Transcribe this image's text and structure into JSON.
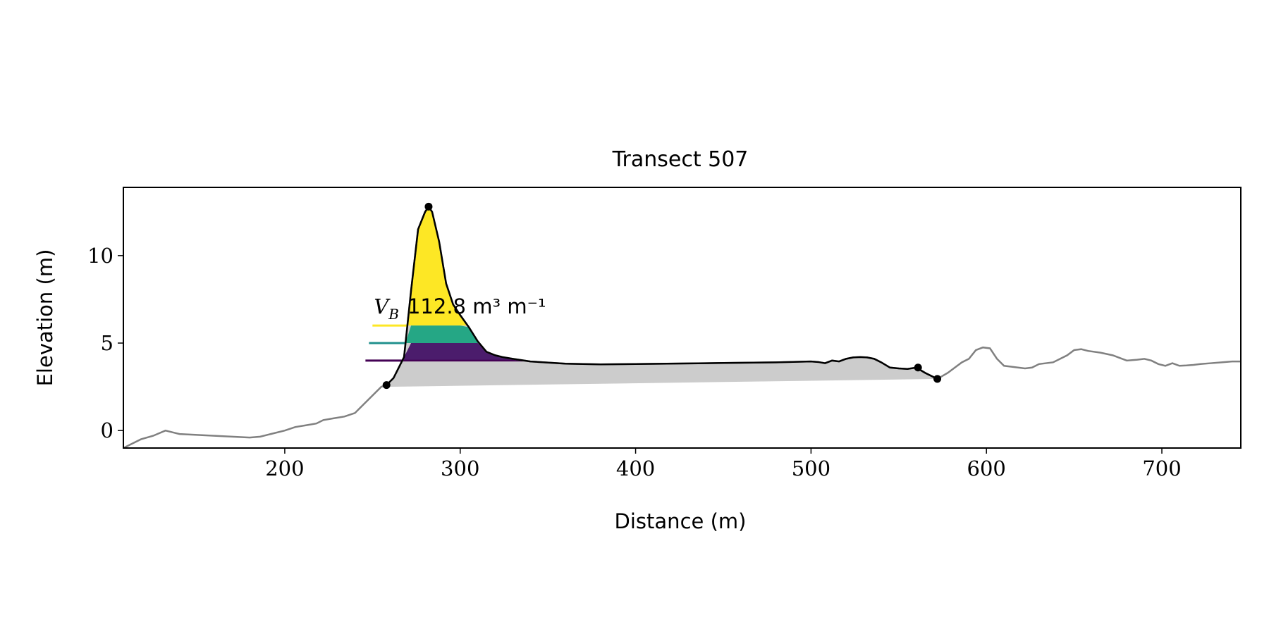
{
  "chart_data": {
    "type": "line",
    "title": "Transect 507",
    "xlabel": "Distance (m)",
    "ylabel": "Elevation (m)",
    "xlim": [
      108,
      745
    ],
    "ylim": [
      -1,
      13.9
    ],
    "xticks": [
      200,
      300,
      400,
      500,
      600,
      700
    ],
    "yticks": [
      0,
      5,
      10
    ],
    "grid": false,
    "legend": null,
    "annotation": {
      "symbol": "V",
      "subscript": "B",
      "text": "112.8 m³ m⁻¹",
      "x": 250,
      "y": 6.7
    },
    "profile_full": {
      "color": "#808080",
      "x": [
        108,
        112,
        118,
        125,
        132,
        136,
        140,
        150,
        160,
        170,
        180,
        186,
        192,
        200,
        206,
        212,
        218,
        222,
        228,
        234,
        240,
        245,
        250,
        255,
        258,
        262,
        268,
        272,
        276,
        280,
        282,
        284,
        288,
        292,
        296,
        300,
        305,
        310,
        315,
        320,
        324,
        330,
        340,
        360,
        380,
        400,
        440,
        480,
        500,
        504,
        508,
        512,
        516,
        520,
        524,
        528,
        532,
        536,
        540,
        545,
        550,
        555,
        560,
        565,
        572,
        578,
        582,
        586,
        590,
        594,
        598,
        602,
        606,
        610,
        614,
        618,
        622,
        626,
        630,
        634,
        638,
        642,
        646,
        650,
        654,
        658,
        665,
        672,
        680,
        686,
        690,
        694,
        698,
        702,
        706,
        710,
        714,
        718,
        722,
        728,
        734,
        740,
        745
      ],
      "y": [
        -1.0,
        -0.8,
        -0.5,
        -0.3,
        0.0,
        -0.1,
        -0.2,
        -0.25,
        -0.3,
        -0.35,
        -0.4,
        -0.35,
        -0.2,
        0.0,
        0.2,
        0.3,
        0.4,
        0.6,
        0.7,
        0.8,
        1.0,
        1.5,
        2.0,
        2.5,
        2.6,
        3.0,
        4.2,
        8.0,
        11.5,
        12.5,
        12.8,
        12.5,
        10.8,
        8.4,
        7.2,
        6.6,
        5.9,
        5.1,
        4.5,
        4.3,
        4.2,
        4.1,
        3.95,
        3.82,
        3.78,
        3.8,
        3.85,
        3.9,
        3.95,
        3.92,
        3.85,
        4.0,
        3.95,
        4.1,
        4.18,
        4.2,
        4.18,
        4.1,
        3.9,
        3.6,
        3.55,
        3.52,
        3.6,
        3.3,
        2.95,
        3.3,
        3.6,
        3.9,
        4.1,
        4.6,
        4.75,
        4.7,
        4.1,
        3.7,
        3.65,
        3.6,
        3.55,
        3.6,
        3.8,
        3.85,
        3.9,
        4.1,
        4.3,
        4.6,
        4.65,
        4.55,
        4.45,
        4.3,
        4.0,
        4.05,
        4.1,
        4.0,
        3.8,
        3.7,
        3.85,
        3.7,
        3.72,
        3.75,
        3.8,
        3.85,
        3.9,
        3.95,
        3.95
      ]
    },
    "profile_beach": {
      "color": "#000000",
      "x": [
        258,
        262,
        268,
        272,
        276,
        280,
        282,
        284,
        288,
        292,
        296,
        300,
        305,
        310,
        315,
        320,
        324,
        330,
        340,
        360,
        380,
        400,
        440,
        480,
        500,
        504,
        508,
        512,
        516,
        520,
        524,
        528,
        532,
        536,
        540,
        545,
        550,
        555,
        560,
        565,
        572
      ],
      "y": [
        2.6,
        3.0,
        4.2,
        8.0,
        11.5,
        12.5,
        12.8,
        12.5,
        10.8,
        8.4,
        7.2,
        6.6,
        5.9,
        5.1,
        4.5,
        4.3,
        4.2,
        4.1,
        3.95,
        3.82,
        3.78,
        3.8,
        3.85,
        3.9,
        3.95,
        3.92,
        3.85,
        4.0,
        3.95,
        4.1,
        4.18,
        4.2,
        4.18,
        4.1,
        3.9,
        3.6,
        3.55,
        3.52,
        3.6,
        3.3,
        2.95
      ]
    },
    "markers": [
      {
        "x": 258,
        "y": 2.6
      },
      {
        "x": 282,
        "y": 12.8
      },
      {
        "x": 561,
        "y": 3.6
      },
      {
        "x": 572,
        "y": 2.95
      }
    ],
    "baseline": {
      "x": [
        258,
        572
      ],
      "y": [
        2.5,
        2.95
      ],
      "fill": "#cccccc"
    },
    "levels": [
      {
        "y": 4.0,
        "color": "#440154",
        "fill": "#4b1c6c",
        "line_start": 246
      },
      {
        "y": 5.0,
        "color": "#21908d",
        "fill": "#25a785",
        "line_start": 248
      },
      {
        "y": 6.0,
        "color": "#fde725",
        "fill": "#fde725",
        "line_start": 250
      }
    ]
  }
}
